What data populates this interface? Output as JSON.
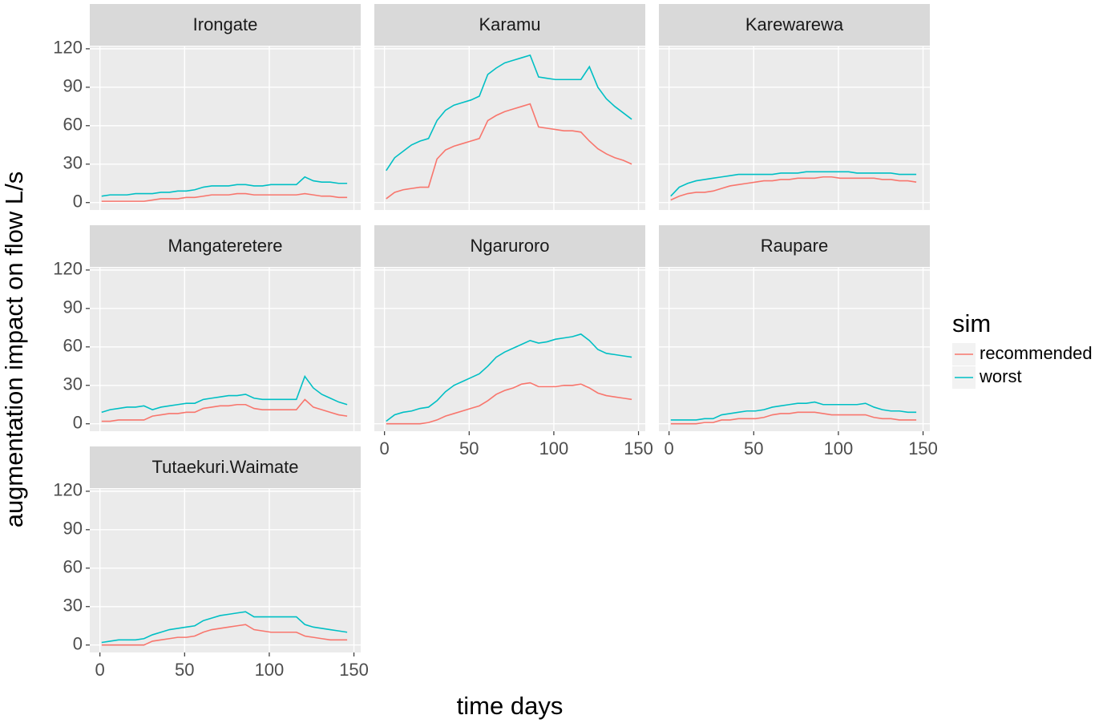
{
  "chart_data": {
    "type": "line",
    "xlabel": "time days",
    "ylabel": "augmentation impact on flow L/s",
    "legend_title": "sim",
    "grid": true,
    "series": [
      {
        "name": "recommended",
        "color": "#F8766D"
      },
      {
        "name": "worst",
        "color": "#00BFC4"
      }
    ],
    "x": [
      1,
      6,
      11,
      16,
      21,
      26,
      31,
      36,
      41,
      46,
      51,
      56,
      61,
      66,
      71,
      76,
      81,
      86,
      91,
      96,
      101,
      106,
      111,
      116,
      121,
      126,
      131,
      136,
      141,
      146
    ],
    "xlim": [
      -6,
      154
    ],
    "xticks": [
      0,
      50,
      100,
      150
    ],
    "ylim": [
      -5.8,
      121.8
    ],
    "yticks": [
      0,
      30,
      60,
      90,
      120
    ],
    "facets": [
      {
        "title": "Irongate",
        "series": [
          {
            "values": [
              1,
              1,
              1,
              1,
              1,
              1,
              2,
              3,
              3,
              3,
              4,
              4,
              5,
              6,
              6,
              6,
              7,
              7,
              6,
              6,
              6,
              6,
              6,
              6,
              7,
              6,
              5,
              5,
              4,
              4
            ]
          },
          {
            "values": [
              5,
              6,
              6,
              6,
              7,
              7,
              7,
              8,
              8,
              9,
              9,
              10,
              12,
              13,
              13,
              13,
              14,
              14,
              13,
              13,
              14,
              14,
              14,
              14,
              20,
              17,
              16,
              16,
              15,
              15
            ]
          }
        ]
      },
      {
        "title": "Karamu",
        "series": [
          {
            "values": [
              3,
              8,
              10,
              11,
              12,
              12,
              34,
              41,
              44,
              46,
              48,
              50,
              64,
              68,
              71,
              73,
              75,
              77,
              59,
              58,
              57,
              56,
              56,
              55,
              48,
              42,
              38,
              35,
              33,
              30
            ]
          },
          {
            "values": [
              25,
              35,
              40,
              45,
              48,
              50,
              64,
              72,
              76,
              78,
              80,
              83,
              100,
              105,
              109,
              111,
              113,
              115,
              98,
              97,
              96,
              96,
              96,
              96,
              106,
              90,
              81,
              75,
              70,
              65
            ]
          }
        ]
      },
      {
        "title": "Karewarewa",
        "series": [
          {
            "values": [
              2,
              5,
              7,
              8,
              8,
              9,
              11,
              13,
              14,
              15,
              16,
              17,
              17,
              18,
              18,
              19,
              19,
              19,
              20,
              20,
              19,
              19,
              19,
              19,
              19,
              18,
              18,
              17,
              17,
              16
            ]
          },
          {
            "values": [
              5,
              12,
              15,
              17,
              18,
              19,
              20,
              21,
              22,
              22,
              22,
              22,
              22,
              23,
              23,
              23,
              24,
              24,
              24,
              24,
              24,
              24,
              23,
              23,
              23,
              23,
              23,
              22,
              22,
              22
            ]
          }
        ]
      },
      {
        "title": "Mangateretere",
        "series": [
          {
            "values": [
              2,
              2,
              3,
              3,
              3,
              3,
              6,
              7,
              8,
              8,
              9,
              9,
              12,
              13,
              14,
              14,
              15,
              15,
              12,
              11,
              11,
              11,
              11,
              11,
              19,
              13,
              11,
              9,
              7,
              6
            ]
          },
          {
            "values": [
              9,
              11,
              12,
              13,
              13,
              14,
              11,
              13,
              14,
              15,
              16,
              16,
              19,
              20,
              21,
              22,
              22,
              23,
              20,
              19,
              19,
              19,
              19,
              19,
              37,
              28,
              23,
              20,
              17,
              15
            ]
          }
        ]
      },
      {
        "title": "Ngaruroro",
        "series": [
          {
            "values": [
              0,
              0,
              0,
              0,
              0,
              1,
              3,
              6,
              8,
              10,
              12,
              14,
              18,
              23,
              26,
              28,
              31,
              32,
              29,
              29,
              29,
              30,
              30,
              31,
              28,
              24,
              22,
              21,
              20,
              19
            ]
          },
          {
            "values": [
              2,
              7,
              9,
              10,
              12,
              13,
              18,
              25,
              30,
              33,
              36,
              39,
              45,
              52,
              56,
              59,
              62,
              65,
              63,
              64,
              66,
              67,
              68,
              70,
              65,
              58,
              55,
              54,
              53,
              52
            ]
          }
        ]
      },
      {
        "title": "Raupare",
        "series": [
          {
            "values": [
              0,
              0,
              0,
              0,
              1,
              1,
              3,
              3,
              4,
              4,
              4,
              5,
              7,
              8,
              8,
              9,
              9,
              9,
              8,
              7,
              7,
              7,
              7,
              7,
              5,
              4,
              4,
              3,
              3,
              3
            ]
          },
          {
            "values": [
              3,
              3,
              3,
              3,
              4,
              4,
              7,
              8,
              9,
              10,
              10,
              11,
              13,
              14,
              15,
              16,
              16,
              17,
              15,
              15,
              15,
              15,
              15,
              16,
              13,
              11,
              10,
              10,
              9,
              9
            ]
          }
        ]
      },
      {
        "title": "Tutaekuri.Waimate",
        "series": [
          {
            "values": [
              0,
              0,
              0,
              0,
              0,
              0,
              3,
              4,
              5,
              6,
              6,
              7,
              10,
              12,
              13,
              14,
              15,
              16,
              12,
              11,
              10,
              10,
              10,
              10,
              7,
              6,
              5,
              4,
              4,
              4
            ]
          },
          {
            "values": [
              2,
              3,
              4,
              4,
              4,
              5,
              8,
              10,
              12,
              13,
              14,
              15,
              19,
              21,
              23,
              24,
              25,
              26,
              22,
              22,
              22,
              22,
              22,
              22,
              16,
              14,
              13,
              12,
              11,
              10
            ]
          }
        ]
      }
    ]
  }
}
